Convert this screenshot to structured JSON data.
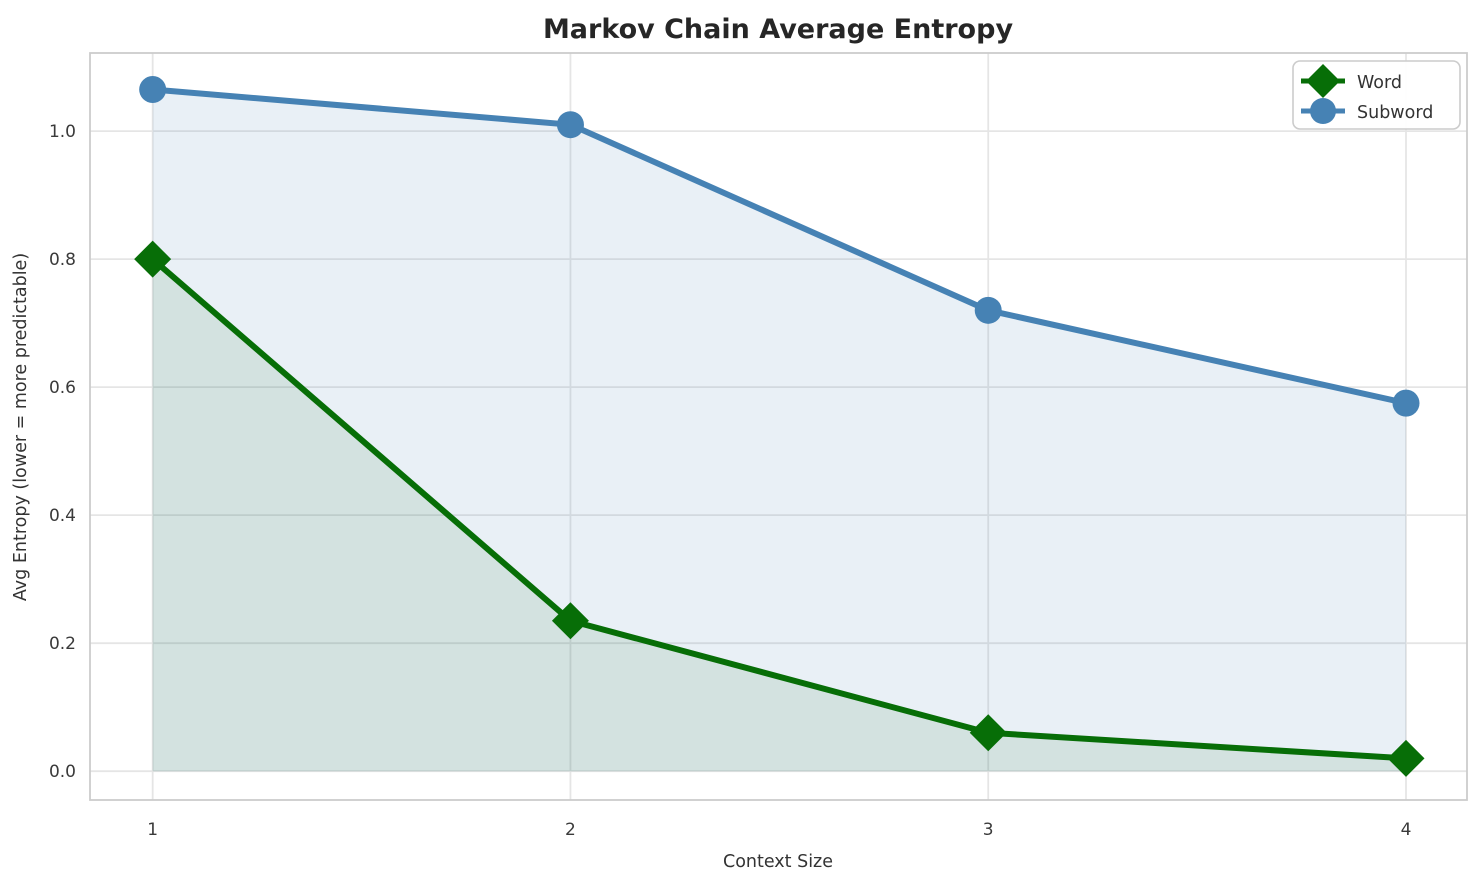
{
  "chart_data": {
    "type": "line",
    "title": "Markov Chain Average Entropy",
    "xlabel": "Context Size",
    "ylabel": "Avg Entropy (lower = more predictable)",
    "x": [
      1,
      2,
      3,
      4
    ],
    "x_tick_labels": [
      "1",
      "2",
      "3",
      "4"
    ],
    "y_ticks": [
      0.0,
      0.2,
      0.4,
      0.6,
      0.8,
      1.0
    ],
    "y_tick_labels": [
      "0.0",
      "0.2",
      "0.4",
      "0.6",
      "0.8",
      "1.0"
    ],
    "xlim": [
      0.85,
      4.146
    ],
    "ylim": [
      -0.045,
      1.122
    ],
    "grid": true,
    "legend_position": "upper right",
    "series": [
      {
        "name": "Word",
        "marker": "diamond",
        "color": "#076e07",
        "fill_alpha": 0.1,
        "area_fill": true,
        "values": [
          0.8,
          0.235,
          0.06,
          0.02
        ]
      },
      {
        "name": "Subword",
        "marker": "circle",
        "color": "#4682b4",
        "fill_alpha": 0.12,
        "area_fill": true,
        "values": [
          1.065,
          1.01,
          0.72,
          0.575
        ]
      }
    ]
  },
  "colors": {
    "background": "#ffffff",
    "grid": "#e5e5e5",
    "spine": "#cccccc",
    "tick_text": "#3a3a3a",
    "title_text": "#262626"
  }
}
